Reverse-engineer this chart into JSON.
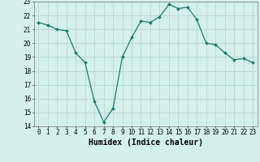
{
  "x": [
    0,
    1,
    2,
    3,
    4,
    5,
    6,
    7,
    8,
    9,
    10,
    11,
    12,
    13,
    14,
    15,
    16,
    17,
    18,
    19,
    20,
    21,
    22,
    23
  ],
  "y": [
    21.5,
    21.3,
    21.0,
    20.9,
    19.3,
    18.6,
    15.8,
    14.3,
    15.3,
    19.0,
    20.4,
    21.6,
    21.5,
    21.9,
    22.8,
    22.5,
    22.6,
    21.7,
    20.0,
    19.9,
    19.3,
    18.8,
    18.9,
    18.6
  ],
  "xlabel": "Humidex (Indice chaleur)",
  "ylim": [
    14,
    23
  ],
  "xlim_min": -0.5,
  "xlim_max": 23.5,
  "yticks": [
    14,
    15,
    16,
    17,
    18,
    19,
    20,
    21,
    22,
    23
  ],
  "xticks": [
    0,
    1,
    2,
    3,
    4,
    5,
    6,
    7,
    8,
    9,
    10,
    11,
    12,
    13,
    14,
    15,
    16,
    17,
    18,
    19,
    20,
    21,
    22,
    23
  ],
  "line_color": "#1a7a6e",
  "marker_color": "#1a7a6e",
  "bg_color": "#d4f0ea",
  "grid_color": "#b8d8d0",
  "xlabel_fontsize": 7,
  "tick_fontsize": 5.5,
  "marker": "D",
  "marker_size": 2.0,
  "linewidth": 0.9
}
